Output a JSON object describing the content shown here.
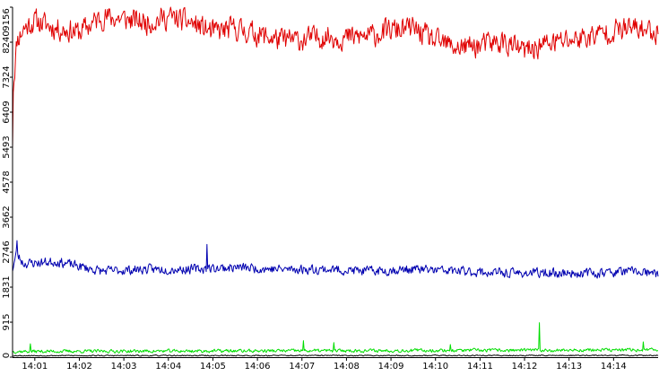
{
  "colors": {
    "background": "#ffffff",
    "axis": "#000000",
    "series_red": "#e00000",
    "series_blue": "#0000b0",
    "series_green": "#00dd00",
    "series_black": "#000000"
  },
  "chart_data": {
    "type": "line",
    "title": "",
    "xlabel": "",
    "ylabel": "",
    "grid": false,
    "legend": "none",
    "ylim": [
      0,
      9156
    ],
    "xlim": [
      "14:00:30",
      "14:15:00"
    ],
    "y_ticks": [
      "0",
      "915",
      "1831",
      "2746",
      "3662",
      "4578",
      "5493",
      "6409",
      "7324",
      "8240",
      "9156"
    ],
    "x_ticks": [
      "14:01",
      "14:02",
      "14:03",
      "14:04",
      "14:05",
      "14:06",
      "14:07",
      "14:08",
      "14:09",
      "14:10",
      "14:11",
      "14:12",
      "14:13",
      "14:14"
    ],
    "x_sample_step_seconds": 1,
    "series": [
      {
        "color": "#e00000",
        "generator": "noise",
        "seed": 11,
        "noise_amplitude": 420,
        "keyframes": [
          {
            "t": "14:00:30",
            "y": 5600
          },
          {
            "t": "14:00:31",
            "y": 7100
          },
          {
            "t": "14:00:36",
            "y": 8300
          },
          {
            "t": "14:00:45",
            "y": 8600
          },
          {
            "t": "14:01:00",
            "y": 8800
          },
          {
            "t": "14:01:30",
            "y": 8600
          },
          {
            "t": "14:02:00",
            "y": 8500
          },
          {
            "t": "14:02:30",
            "y": 8900
          },
          {
            "t": "14:03:00",
            "y": 8850
          },
          {
            "t": "14:03:30",
            "y": 8750
          },
          {
            "t": "14:04:00",
            "y": 8900
          },
          {
            "t": "14:04:30",
            "y": 8750
          },
          {
            "t": "14:05:00",
            "y": 8500
          },
          {
            "t": "14:05:30",
            "y": 8600
          },
          {
            "t": "14:06:00",
            "y": 8450
          },
          {
            "t": "14:06:30",
            "y": 8300
          },
          {
            "t": "14:07:00",
            "y": 8300
          },
          {
            "t": "14:07:30",
            "y": 8400
          },
          {
            "t": "14:08:00",
            "y": 8350
          },
          {
            "t": "14:08:30",
            "y": 8400
          },
          {
            "t": "14:09:00",
            "y": 8550
          },
          {
            "t": "14:09:30",
            "y": 8600
          },
          {
            "t": "14:10:00",
            "y": 8250
          },
          {
            "t": "14:10:30",
            "y": 8100
          },
          {
            "t": "14:11:00",
            "y": 8150
          },
          {
            "t": "14:11:30",
            "y": 8250
          },
          {
            "t": "14:12:00",
            "y": 8000
          },
          {
            "t": "14:12:30",
            "y": 8200
          },
          {
            "t": "14:13:00",
            "y": 8300
          },
          {
            "t": "14:13:30",
            "y": 8400
          },
          {
            "t": "14:14:00",
            "y": 8550
          },
          {
            "t": "14:14:30",
            "y": 8600
          },
          {
            "t": "14:15:00",
            "y": 8500
          }
        ]
      },
      {
        "color": "#0000b0",
        "generator": "noise",
        "seed": 23,
        "noise_amplitude": 170,
        "keyframes": [
          {
            "t": "14:00:30",
            "y": 2300
          },
          {
            "t": "14:00:35",
            "y": 2700
          },
          {
            "t": "14:00:45",
            "y": 2450
          },
          {
            "t": "14:01:30",
            "y": 2500
          },
          {
            "t": "14:02:30",
            "y": 2250
          },
          {
            "t": "14:03:30",
            "y": 2300
          },
          {
            "t": "14:04:30",
            "y": 2300
          },
          {
            "t": "14:05:30",
            "y": 2350
          },
          {
            "t": "14:06:30",
            "y": 2300
          },
          {
            "t": "14:07:30",
            "y": 2300
          },
          {
            "t": "14:08:30",
            "y": 2250
          },
          {
            "t": "14:09:30",
            "y": 2300
          },
          {
            "t": "14:10:30",
            "y": 2250
          },
          {
            "t": "14:11:30",
            "y": 2200
          },
          {
            "t": "14:12:30",
            "y": 2200
          },
          {
            "t": "14:13:30",
            "y": 2200
          },
          {
            "t": "14:14:30",
            "y": 2250
          },
          {
            "t": "14:15:00",
            "y": 2150
          }
        ],
        "spikes": [
          {
            "t": "14:00:36",
            "y": 3050
          },
          {
            "t": "14:04:52",
            "y": 2950
          }
        ]
      },
      {
        "color": "#00dd00",
        "generator": "noise",
        "seed": 37,
        "noise_amplitude": 60,
        "keyframes": [
          {
            "t": "14:00:30",
            "y": 150
          },
          {
            "t": "14:15:00",
            "y": 190
          }
        ],
        "spikes": [
          {
            "t": "14:00:54",
            "y": 350
          },
          {
            "t": "14:07:02",
            "y": 430
          },
          {
            "t": "14:07:43",
            "y": 380
          },
          {
            "t": "14:10:20",
            "y": 330
          },
          {
            "t": "14:12:20",
            "y": 900
          },
          {
            "t": "14:14:40",
            "y": 400
          }
        ]
      },
      {
        "color": "#000000",
        "generator": "noise",
        "seed": 53,
        "noise_amplitude": 20,
        "keyframes": [
          {
            "t": "14:00:30",
            "y": 40
          },
          {
            "t": "14:15:00",
            "y": 45
          }
        ]
      }
    ]
  }
}
